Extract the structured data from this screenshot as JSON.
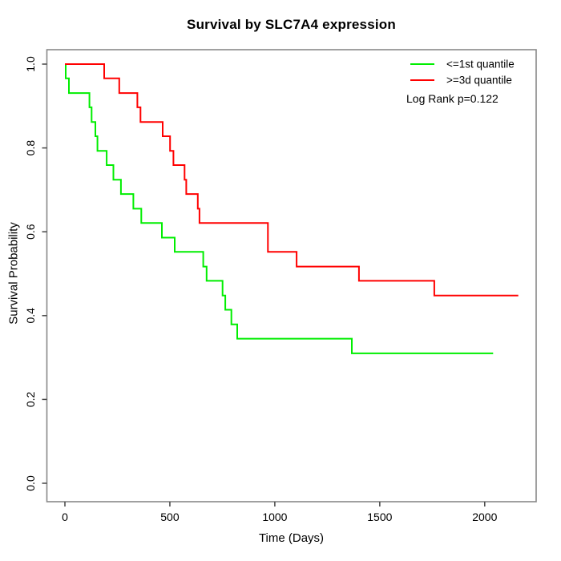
{
  "chart_data": {
    "type": "line",
    "subtype": "kaplan_meier_step",
    "title": "Survival by SLC7A4 expression",
    "xlabel": "Time (Days)",
    "ylabel": "Survival Probability",
    "x_ticks": [
      0,
      500,
      1000,
      1500,
      2000
    ],
    "y_ticks": [
      "0.0",
      "0.2",
      "0.4",
      "0.6",
      "0.8",
      "1.0"
    ],
    "xlim": [
      -86,
      2246
    ],
    "ylim": [
      -0.04,
      1.04
    ],
    "grid": false,
    "legend_position": "top-right",
    "annotation": "Log Rank p=0.122",
    "axis_color": "#888888",
    "tick_color": "#444444",
    "series": [
      {
        "name": "<=1st quantile",
        "color": "#00ee00",
        "start": [
          0,
          1.0
        ],
        "events": [
          [
            4,
            0.966
          ],
          [
            19,
            0.931
          ],
          [
            117,
            0.897
          ],
          [
            127,
            0.862
          ],
          [
            145,
            0.828
          ],
          [
            155,
            0.793
          ],
          [
            199,
            0.759
          ],
          [
            231,
            0.724
          ],
          [
            267,
            0.69
          ],
          [
            326,
            0.655
          ],
          [
            364,
            0.621
          ],
          [
            462,
            0.586
          ],
          [
            523,
            0.552
          ],
          [
            659,
            0.517
          ],
          [
            675,
            0.483
          ],
          [
            751,
            0.448
          ],
          [
            764,
            0.414
          ],
          [
            793,
            0.379
          ],
          [
            821,
            0.345
          ],
          [
            1367,
            0.31
          ]
        ],
        "end_time": 2040
      },
      {
        "name": ">=3d quantile",
        "color": "#ff0000",
        "start": [
          0,
          1.0
        ],
        "events": [
          [
            187,
            0.966
          ],
          [
            259,
            0.931
          ],
          [
            345,
            0.897
          ],
          [
            360,
            0.862
          ],
          [
            466,
            0.828
          ],
          [
            501,
            0.793
          ],
          [
            517,
            0.759
          ],
          [
            570,
            0.724
          ],
          [
            578,
            0.69
          ],
          [
            633,
            0.655
          ],
          [
            641,
            0.621
          ],
          [
            967,
            0.552
          ],
          [
            1104,
            0.517
          ],
          [
            1401,
            0.483
          ],
          [
            1760,
            0.448
          ]
        ],
        "end_time": 2160
      }
    ]
  }
}
